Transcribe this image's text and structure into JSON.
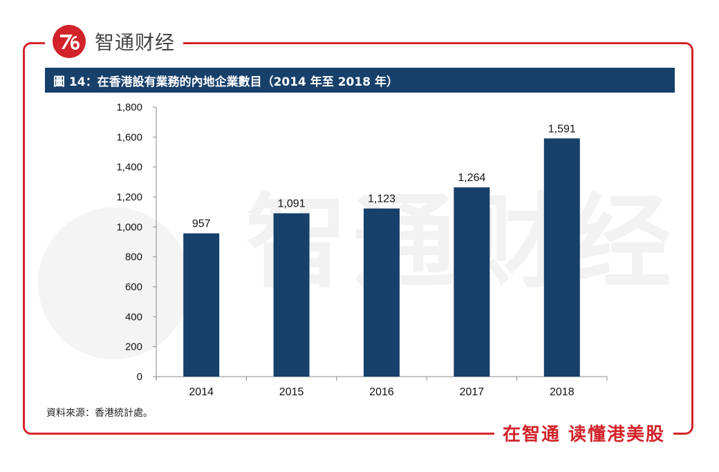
{
  "brand": {
    "name": "智通财经",
    "slogan": "在智通  读懂港美股",
    "colors": {
      "red": "#d2232a",
      "navy": "#17406b",
      "bar": "#17406b"
    },
    "icon": "zhitong-logo-icon"
  },
  "figure_title": "圖 14：在香港設有業務的內地企業數目（2014 年至 2018 年）",
  "source": "資料來源：香港統計處。",
  "chart_data": {
    "type": "bar",
    "categories": [
      "2014",
      "2015",
      "2016",
      "2017",
      "2018"
    ],
    "values": [
      957,
      1091,
      1123,
      1264,
      1591
    ],
    "data_labels": [
      "957",
      "1,091",
      "1,123",
      "1,264",
      "1,591"
    ],
    "yticks": [
      "0",
      "200",
      "400",
      "600",
      "800",
      "1,000",
      "1,200",
      "1,400",
      "1,600",
      "1,800"
    ],
    "ylim": [
      0,
      1800
    ],
    "xlabel": "",
    "ylabel": "",
    "grid": false,
    "legend": "none"
  }
}
